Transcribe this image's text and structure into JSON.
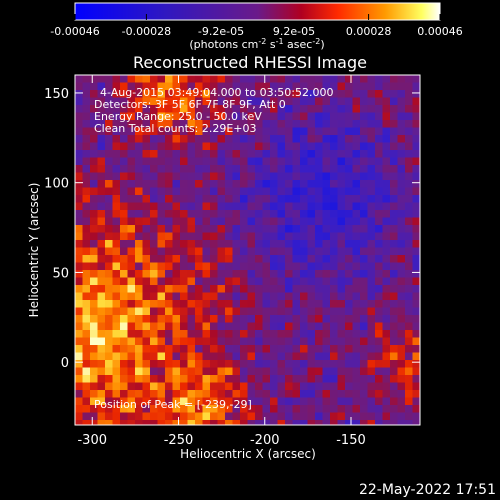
{
  "chart_data": {
    "type": "heatmap",
    "title": "Reconstructed RHESSI Image",
    "xlabel": "Heliocentric X (arcsec)",
    "ylabel": "Heliocentric Y (arcsec)",
    "xlim": [
      -310,
      -110
    ],
    "ylim": [
      -35,
      160
    ],
    "x_ticks": [
      -300,
      -250,
      -200,
      -150
    ],
    "y_ticks": [
      0,
      50,
      100,
      150
    ],
    "colorbar": {
      "label_main": "(photons cm",
      "label_sup1": "-2",
      "label_mid1": " s",
      "label_sup2": "-1",
      "label_mid2": " asec",
      "label_sup3": "-2",
      "label_end": ")",
      "range": [
        -0.00046,
        0.00046
      ],
      "major_ticks": [
        "-0.00046",
        "-0.00028",
        "0.00028",
        "0.00046"
      ],
      "major_values": [
        -0.00046,
        -0.00028,
        0.00028,
        0.00046
      ],
      "minor_ticks": [
        "-9.2e-05",
        "9.2e-05"
      ],
      "minor_values": [
        -9.2e-05,
        9.2e-05
      ]
    },
    "info": {
      "time": "4-Aug-2015 03:49:04.000 to 03:50:52.000",
      "detectors": "Detectors: 3F 5F 6F 7F 8F 9F, Att 0",
      "energy": "Energy Range: 25.0 - 50.0 keV",
      "clean": "Clean     Total counts: 2.29E+03",
      "peak": "Position of Peak = [-239,-29]"
    },
    "date_stamp": "22-May-2022 17:51"
  }
}
